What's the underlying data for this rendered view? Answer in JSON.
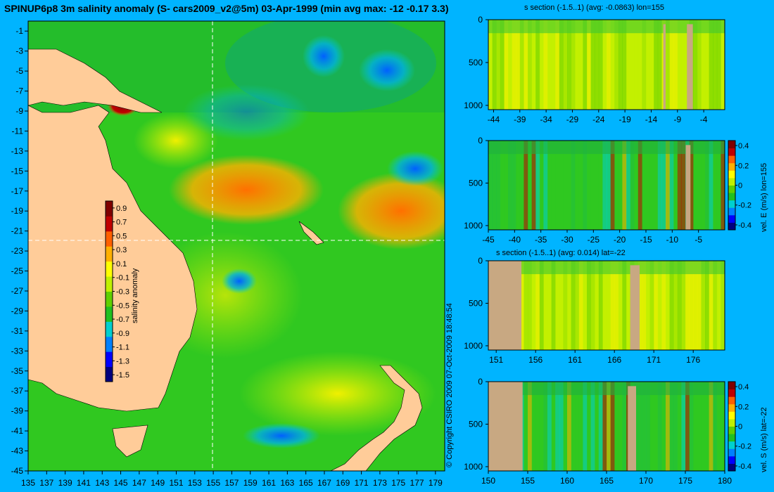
{
  "title": "SPINUP6p8 3m salinity anomaly (S- cars2009_v2@5m) 03-Apr-1999 (min avg max: -12 -0.17 3.3)",
  "copyright": "© Copyright CSIRO 2009   07-Oct-2009 18:48:54",
  "colors": {
    "background": "#00b4ff",
    "land": "#ffcc99",
    "section_land": "#c8a882",
    "colormap": [
      "#00007f",
      "#0000ff",
      "#0080ff",
      "#00d0d0",
      "#20c020",
      "#60d000",
      "#c0f000",
      "#ffff00",
      "#ffb000",
      "#ff6000",
      "#c00000",
      "#800000"
    ]
  },
  "chart_data": [
    {
      "type": "heatmap",
      "name": "map",
      "x_ticks": [
        "135",
        "137",
        "139",
        "141",
        "143",
        "145",
        "147",
        "149",
        "151",
        "153",
        "155",
        "157",
        "159",
        "161",
        "163",
        "165",
        "167",
        "169",
        "171",
        "173",
        "175",
        "177",
        "179"
      ],
      "y_ticks": [
        "-1",
        "-3",
        "-5",
        "-7",
        "-9",
        "-11",
        "-13",
        "-15",
        "-17",
        "-19",
        "-21",
        "-23",
        "-25",
        "-27",
        "-29",
        "-31",
        "-33",
        "-35",
        "-37",
        "-39",
        "-41",
        "-43",
        "-45"
      ],
      "xlim": [
        135,
        180
      ],
      "ylim": [
        -45,
        0
      ],
      "crosshair": {
        "lon": 155,
        "lat": -22
      },
      "colorbar": {
        "label": "salinity anomaly",
        "ticks": [
          "0.9",
          "0.7",
          "0.5",
          "0.3",
          "0.1",
          "-0.1",
          "-0.3",
          "-0.5",
          "-0.7",
          "-0.9",
          "-1.1",
          "-1.3",
          "-1.5"
        ],
        "range": [
          -1.6,
          1.0
        ]
      }
    },
    {
      "type": "heatmap",
      "name": "salinity-section-lon155",
      "title": "s section (-1.5..1) (avg: -0.0863) lon=155",
      "x_ticks": [
        "-44",
        "-39",
        "-34",
        "-29",
        "-24",
        "-19",
        "-14",
        "-9",
        "-4"
      ],
      "xlim": [
        -45,
        0
      ],
      "y_ticks": [
        "0",
        "500",
        "1000"
      ],
      "ylim": [
        1050,
        0
      ]
    },
    {
      "type": "heatmap",
      "name": "velocity-east-section-lon155",
      "x_ticks": [
        "-45",
        "-40",
        "-35",
        "-30",
        "-25",
        "-20",
        "-15",
        "-10",
        "-5"
      ],
      "xlim": [
        -45,
        0
      ],
      "y_ticks": [
        "0",
        "500",
        "1000"
      ],
      "ylim": [
        1050,
        0
      ],
      "colorbar": {
        "label": "vel. E (m/s) lon=155",
        "ticks": [
          "0.4",
          "0.2",
          "0",
          "-0.2",
          "-0.4"
        ],
        "range": [
          -0.45,
          0.45
        ]
      }
    },
    {
      "type": "heatmap",
      "name": "salinity-section-lat-22",
      "title": "s section (-1.5..1) (avg: 0.014) lat=-22",
      "x_ticks": [
        "151",
        "156",
        "161",
        "166",
        "171",
        "176"
      ],
      "xlim": [
        150,
        180
      ],
      "y_ticks": [
        "0",
        "500",
        "1000"
      ],
      "ylim": [
        1050,
        0
      ]
    },
    {
      "type": "heatmap",
      "name": "velocity-south-section-lat-22",
      "x_ticks": [
        "150",
        "155",
        "160",
        "165",
        "170",
        "175",
        "180"
      ],
      "xlim": [
        150,
        180
      ],
      "y_ticks": [
        "0",
        "500",
        "1000"
      ],
      "ylim": [
        1050,
        0
      ],
      "colorbar": {
        "label": "vel. S (m/s) lat=-22",
        "ticks": [
          "0.4",
          "0.2",
          "0",
          "-0.2",
          "-0.4"
        ],
        "range": [
          -0.45,
          0.45
        ]
      }
    }
  ]
}
